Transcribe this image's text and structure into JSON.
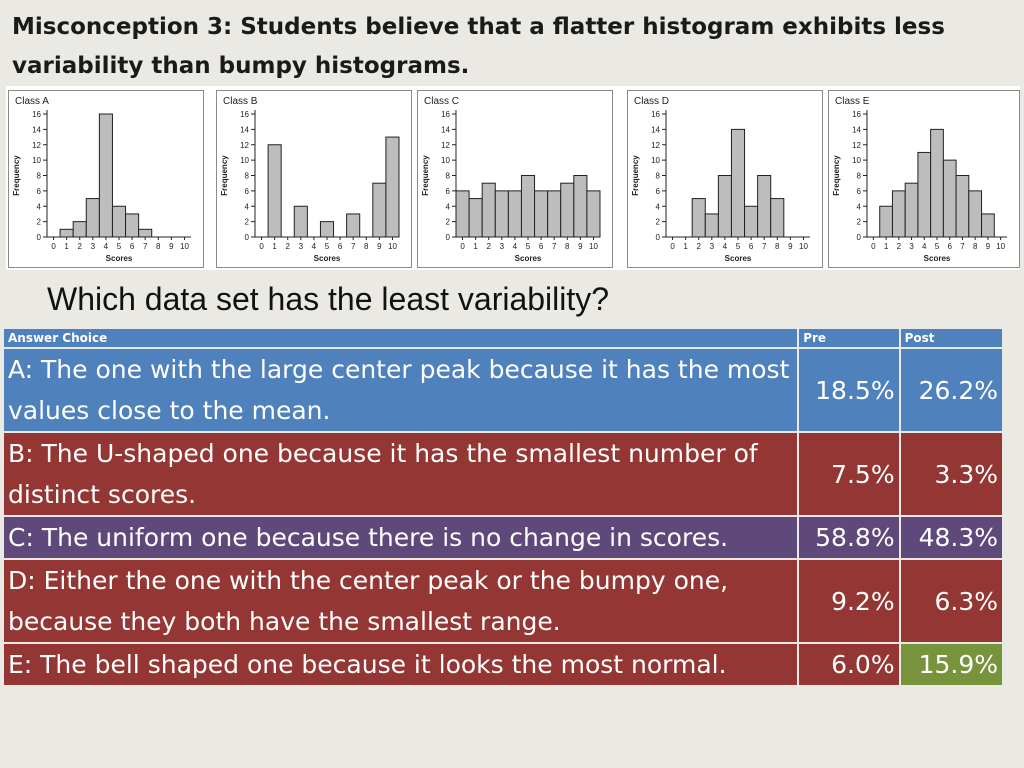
{
  "title": "Misconception 3: Students believe that a flatter histogram exhibits less variability than bumpy histograms.",
  "question": "Which data set has the least variability?",
  "colors": {
    "header": "#4f81bd",
    "row_blue": "#4f81bd",
    "row_red": "#943634",
    "row_purple": "#5f497a",
    "row_green": "#77933c",
    "bar_fill": "#bdbdbd"
  },
  "table": {
    "headers": [
      "Answer Choice",
      "Pre",
      "Post"
    ],
    "rows": [
      {
        "choice": "A: The one with the large center peak because it has the most values close to the mean.",
        "pre": "18.5%",
        "post": "26.2%",
        "color": "#4f81bd"
      },
      {
        "choice": "B: The U-shaped one because it has the smallest number of distinct scores.",
        "pre": "7.5%",
        "post": "3.3%",
        "color": "#943634"
      },
      {
        "choice": "C: The uniform one because there is no change in scores.",
        "pre": "58.8%",
        "post": "48.3%",
        "color": "#5f497a"
      },
      {
        "choice": "D: Either the one with the center peak or the bumpy one, because they both have the smallest range.",
        "pre": "9.2%",
        "post": "6.3%",
        "color": "#943634"
      },
      {
        "choice": "E: The bell shaped one because it looks the most normal.",
        "pre": "6.0%",
        "post": "15.9%",
        "color": "#943634",
        "post_color": "#77933c"
      }
    ]
  },
  "chart_data": [
    {
      "type": "bar",
      "title": "Class A",
      "xlabel": "Scores",
      "ylabel": "Frequency",
      "categories": [
        0,
        1,
        2,
        3,
        4,
        5,
        6,
        7,
        8,
        9,
        10
      ],
      "values": [
        0,
        1,
        2,
        5,
        16,
        4,
        3,
        1,
        0,
        0,
        0
      ],
      "ylim": [
        0,
        16
      ],
      "yticks": [
        0,
        2,
        4,
        6,
        8,
        10,
        12,
        14,
        16
      ],
      "grid": false
    },
    {
      "type": "bar",
      "title": "Class B",
      "xlabel": "Scores",
      "ylabel": "Frequency",
      "categories": [
        0,
        1,
        2,
        3,
        4,
        5,
        6,
        7,
        8,
        9,
        10
      ],
      "values": [
        0,
        12,
        0,
        4,
        0,
        2,
        0,
        3,
        0,
        7,
        13
      ],
      "ylim": [
        0,
        16
      ],
      "yticks": [
        0,
        2,
        4,
        6,
        8,
        10,
        12,
        14,
        16
      ],
      "grid": false
    },
    {
      "type": "bar",
      "title": "Class C",
      "xlabel": "Scores",
      "ylabel": "Frequency",
      "categories": [
        0,
        1,
        2,
        3,
        4,
        5,
        6,
        7,
        8,
        9,
        10
      ],
      "values": [
        6,
        5,
        7,
        6,
        6,
        8,
        6,
        6,
        7,
        8,
        6
      ],
      "ylim": [
        0,
        16
      ],
      "yticks": [
        0,
        2,
        4,
        6,
        8,
        10,
        12,
        14,
        16
      ],
      "grid": false
    },
    {
      "type": "bar",
      "title": "Class D",
      "xlabel": "Scores",
      "ylabel": "Frequency",
      "categories": [
        0,
        1,
        2,
        3,
        4,
        5,
        6,
        7,
        8,
        9,
        10
      ],
      "values": [
        0,
        0,
        5,
        3,
        8,
        14,
        4,
        8,
        5,
        0,
        0
      ],
      "ylim": [
        0,
        16
      ],
      "yticks": [
        0,
        2,
        4,
        6,
        8,
        10,
        12,
        14,
        16
      ],
      "grid": false
    },
    {
      "type": "bar",
      "title": "Class E",
      "xlabel": "Scores",
      "ylabel": "Frequency",
      "categories": [
        0,
        1,
        2,
        3,
        4,
        5,
        6,
        7,
        8,
        9,
        10
      ],
      "values": [
        0,
        4,
        6,
        7,
        11,
        14,
        10,
        8,
        6,
        3,
        0
      ],
      "ylim": [
        0,
        16
      ],
      "yticks": [
        0,
        2,
        4,
        6,
        8,
        10,
        12,
        14,
        16
      ],
      "grid": false
    }
  ]
}
